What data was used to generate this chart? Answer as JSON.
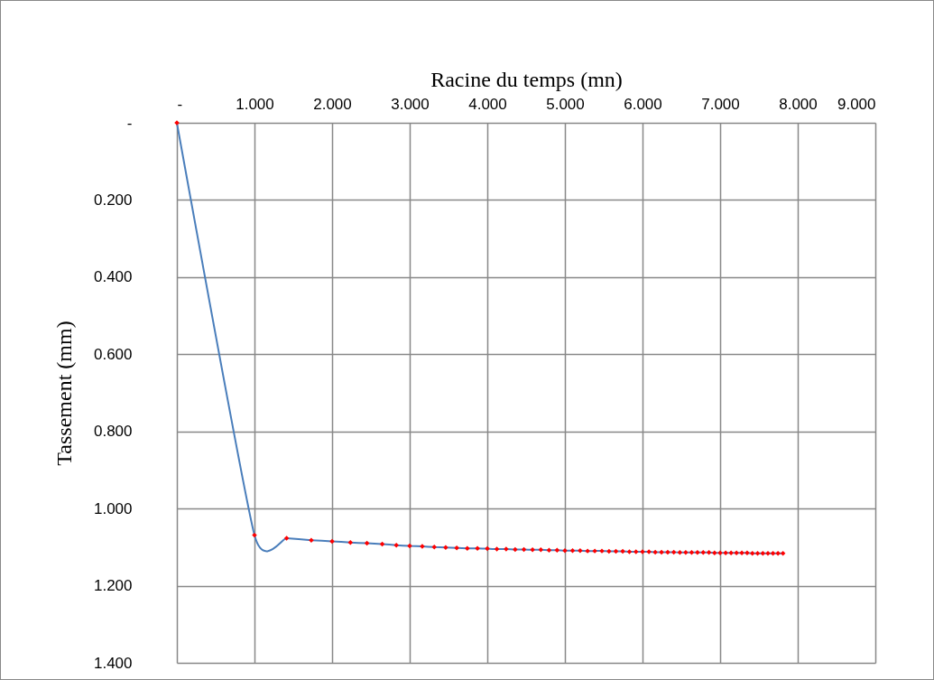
{
  "chart_data": {
    "type": "line",
    "xlabel": "Racine du temps (mn)",
    "ylabel": "Tassement (mm)",
    "x": [
      0,
      1,
      1.414,
      1.732,
      2,
      2.236,
      2.449,
      2.646,
      2.828,
      3,
      3.162,
      3.317,
      3.464,
      3.606,
      3.742,
      3.873,
      4,
      4.123,
      4.243,
      4.359,
      4.472,
      4.583,
      4.69,
      4.796,
      4.899,
      5,
      5.099,
      5.196,
      5.292,
      5.385,
      5.477,
      5.568,
      5.657,
      5.745,
      5.831,
      5.916,
      6,
      6.083,
      6.164,
      6.245,
      6.325,
      6.403,
      6.481,
      6.557,
      6.633,
      6.708,
      6.782,
      6.856,
      6.928,
      7,
      7.071,
      7.141,
      7.211,
      7.28,
      7.348,
      7.416,
      7.483,
      7.55,
      7.616,
      7.681,
      7.746,
      7.81
    ],
    "series": [
      {
        "color": "#4a7ebb",
        "marker": "none",
        "line_style": "solid",
        "values": [
          0,
          1.069,
          1.077,
          1.082,
          1.085,
          1.088,
          1.09,
          1.092,
          1.095,
          1.097,
          1.098,
          1.1,
          1.101,
          1.102,
          1.103,
          1.103,
          1.104,
          1.105,
          1.105,
          1.106,
          1.106,
          1.107,
          1.107,
          1.108,
          1.108,
          1.109,
          1.109,
          1.109,
          1.11,
          1.11,
          1.11,
          1.111,
          1.111,
          1.111,
          1.112,
          1.112,
          1.112,
          1.112,
          1.113,
          1.113,
          1.113,
          1.113,
          1.114,
          1.114,
          1.114,
          1.114,
          1.114,
          1.114,
          1.115,
          1.115,
          1.115,
          1.115,
          1.115,
          1.115,
          1.115,
          1.116,
          1.116,
          1.116,
          1.116,
          1.116,
          1.116,
          1.116
        ]
      },
      {
        "type": "scatter",
        "color": "#ff0000",
        "marker": "diamond",
        "values": [
          0,
          1.069,
          1.077,
          1.082,
          1.085,
          1.088,
          1.09,
          1.092,
          1.095,
          1.097,
          1.098,
          1.1,
          1.101,
          1.102,
          1.103,
          1.103,
          1.104,
          1.105,
          1.105,
          1.106,
          1.106,
          1.107,
          1.107,
          1.108,
          1.108,
          1.109,
          1.109,
          1.109,
          1.11,
          1.11,
          1.11,
          1.111,
          1.111,
          1.111,
          1.112,
          1.112,
          1.112,
          1.112,
          1.113,
          1.113,
          1.113,
          1.113,
          1.114,
          1.114,
          1.114,
          1.114,
          1.114,
          1.114,
          1.115,
          1.115,
          1.115,
          1.115,
          1.115,
          1.115,
          1.115,
          1.116,
          1.116,
          1.116,
          1.116,
          1.116,
          1.116,
          1.116
        ]
      }
    ],
    "xlim": [
      0,
      9
    ],
    "xticks": [
      {
        "value": 0,
        "label": "-"
      },
      {
        "value": 1,
        "label": "1.000"
      },
      {
        "value": 2,
        "label": "2.000"
      },
      {
        "value": 3,
        "label": "3.000"
      },
      {
        "value": 4,
        "label": "4.000"
      },
      {
        "value": 5,
        "label": "5.000"
      },
      {
        "value": 6,
        "label": "6.000"
      },
      {
        "value": 7,
        "label": "7.000"
      },
      {
        "value": 8,
        "label": "8.000"
      },
      {
        "value": 9,
        "label": "9.000"
      }
    ],
    "ylim": [
      1.4,
      0
    ],
    "yticks": [
      {
        "value": 0,
        "label": "-"
      },
      {
        "value": 0.2,
        "label": "0.200"
      },
      {
        "value": 0.4,
        "label": "0.400"
      },
      {
        "value": 0.6,
        "label": "0.600"
      },
      {
        "value": 0.8,
        "label": "0.800"
      },
      {
        "value": 1,
        "label": "1.000"
      },
      {
        "value": 1.2,
        "label": "1.200"
      },
      {
        "value": 1.4,
        "label": "1.400"
      }
    ],
    "grid": true
  }
}
